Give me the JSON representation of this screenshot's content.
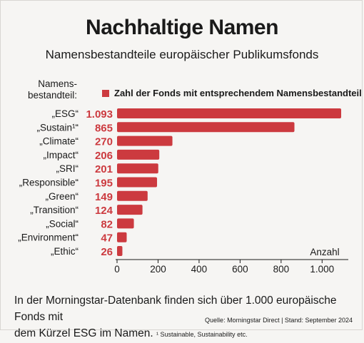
{
  "title": "Nachhaltige Namen",
  "subtitle": "Namensbestandteile europäischer Publikumsfonds",
  "chart_data": {
    "type": "bar",
    "orientation": "horizontal",
    "category_header": "Namens-\nbestandteil:",
    "categories": [
      "„ESG“",
      "„Sustain¹“",
      "„Climate“",
      "„Impact“",
      "„SRI“",
      "„Responsible“",
      "„Green“",
      "„Transition“",
      "„Social“",
      "„Environment“",
      "„Ethic“"
    ],
    "series": [
      {
        "name": "Zahl der Fonds mit entsprechendem Namensbestandteil",
        "values": [
          1093,
          865,
          270,
          206,
          201,
          195,
          149,
          124,
          82,
          47,
          26
        ],
        "value_labels": [
          "1.093",
          "865",
          "270",
          "206",
          "201",
          "195",
          "149",
          "124",
          "82",
          "47",
          "26"
        ],
        "color": "#cc3a3f"
      }
    ],
    "xlim": [
      0,
      1100
    ],
    "xticks": [
      0,
      200,
      400,
      600,
      800,
      1000
    ],
    "xtick_labels": [
      "0",
      "200",
      "400",
      "600",
      "800",
      "1.000"
    ],
    "xlabel": "Anzahl",
    "legend_position": "top",
    "grid": false
  },
  "footer": {
    "text_line1": "In der Morningstar-Datenbank finden sich über 1.000 europäische Fonds mit",
    "text_line2": "dem Kürzel ESG im Namen.",
    "footnote": "¹ Sustainable, Sustainability etc.",
    "source": "Quelle: Morningstar Direct | Stand: September 2024"
  }
}
